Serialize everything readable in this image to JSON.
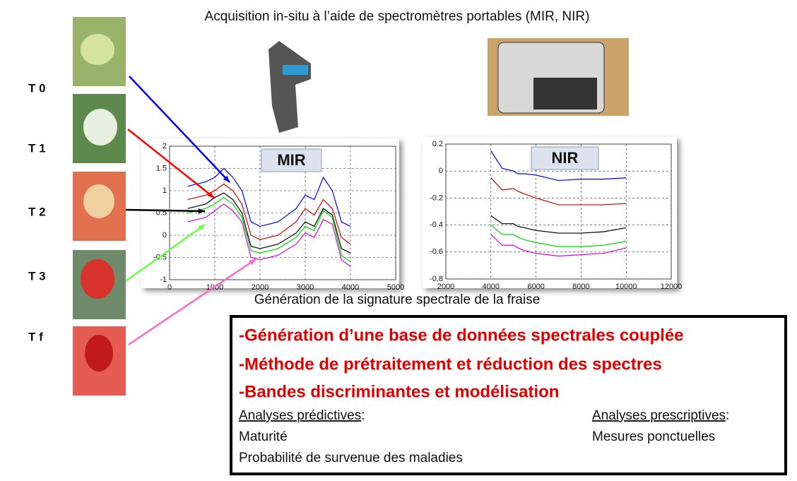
{
  "title": "Acquisition in-situ à l’aide de spectromètres portables (MIR, NIR)",
  "stages": [
    "T 0",
    "T 1",
    "T 2",
    "T 3",
    "T f"
  ],
  "caption": "Génération de la signature spectrale de la fraise",
  "box": {
    "lines": [
      "-Génération d’une base de données spectrales couplée",
      "-Méthode de prétraitement et réduction des spectres",
      "-Bandes discriminantes et modélisation"
    ],
    "left": {
      "heading": "Analyses prédictives",
      "colon": ":",
      "items": [
        "Maturité",
        "Probabilité de survenue des maladies"
      ]
    },
    "right": {
      "heading": "Analyses prescriptives",
      "colon": ":",
      "items": [
        "Mesures ponctuelles"
      ]
    }
  },
  "chart_data": [
    {
      "type": "line",
      "title": "MIR",
      "x": [
        400,
        600,
        800,
        1000,
        1200,
        1400,
        1600,
        1800,
        2000,
        2400,
        2800,
        3000,
        3200,
        3400,
        3600,
        3800,
        4000
      ],
      "series": [
        {
          "color": "#0000ff",
          "values": [
            1.1,
            1.15,
            1.2,
            1.3,
            1.5,
            1.3,
            1.0,
            0.3,
            0.2,
            0.3,
            0.6,
            0.9,
            0.8,
            1.3,
            1.0,
            0.3,
            0.2
          ]
        },
        {
          "color": "#cc0000",
          "values": [
            0.8,
            0.85,
            0.9,
            1.0,
            1.15,
            1.0,
            0.7,
            0.0,
            -0.1,
            0.0,
            0.3,
            0.6,
            0.45,
            0.8,
            0.6,
            -0.05,
            -0.2
          ]
        },
        {
          "color": "#000000",
          "values": [
            0.6,
            0.65,
            0.7,
            0.85,
            0.95,
            0.8,
            0.5,
            -0.25,
            -0.3,
            -0.2,
            0.05,
            0.3,
            0.2,
            0.6,
            0.45,
            -0.3,
            -0.4
          ]
        },
        {
          "color": "#00dd00",
          "values": [
            0.5,
            0.55,
            0.6,
            0.7,
            0.85,
            0.7,
            0.4,
            -0.35,
            -0.4,
            -0.3,
            -0.05,
            0.2,
            0.1,
            0.55,
            0.4,
            -0.45,
            -0.6
          ]
        },
        {
          "color": "#dd00dd",
          "values": [
            0.3,
            0.35,
            0.4,
            0.55,
            0.7,
            0.55,
            0.3,
            -0.5,
            -0.55,
            -0.45,
            -0.2,
            0.05,
            -0.05,
            0.35,
            0.25,
            -0.55,
            -0.7
          ]
        }
      ],
      "xlim": [
        0,
        5000
      ],
      "xticks": [
        0,
        1000,
        2000,
        3000,
        4000,
        5000
      ],
      "ylim": [
        -1,
        2
      ],
      "yticks": [
        -1,
        -0.5,
        0,
        0.5,
        1,
        1.5,
        2
      ],
      "grid": true
    },
    {
      "type": "line",
      "title": "NIR",
      "x": [
        4000,
        4500,
        5000,
        5200,
        5500,
        6000,
        7000,
        8000,
        9000,
        10000
      ],
      "series": [
        {
          "color": "#0000ff",
          "values": [
            0.15,
            0.02,
            0.0,
            -0.02,
            -0.02,
            -0.03,
            -0.07,
            -0.06,
            -0.06,
            -0.05
          ]
        },
        {
          "color": "#cc0000",
          "values": [
            -0.05,
            -0.14,
            -0.13,
            -0.15,
            -0.17,
            -0.2,
            -0.25,
            -0.25,
            -0.25,
            -0.24
          ]
        },
        {
          "color": "#000000",
          "values": [
            -0.33,
            -0.39,
            -0.39,
            -0.41,
            -0.42,
            -0.44,
            -0.46,
            -0.46,
            -0.45,
            -0.42
          ]
        },
        {
          "color": "#00dd00",
          "values": [
            -0.4,
            -0.47,
            -0.47,
            -0.49,
            -0.51,
            -0.53,
            -0.56,
            -0.56,
            -0.55,
            -0.52
          ]
        },
        {
          "color": "#dd00dd",
          "values": [
            -0.47,
            -0.55,
            -0.55,
            -0.57,
            -0.59,
            -0.61,
            -0.63,
            -0.62,
            -0.61,
            -0.57
          ]
        }
      ],
      "xlim": [
        2000,
        12000
      ],
      "xticks": [
        2000,
        4000,
        6000,
        8000,
        10000,
        12000
      ],
      "ylim": [
        -0.8,
        0.2
      ],
      "yticks": [
        -0.8,
        -0.6,
        -0.4,
        -0.2,
        0,
        0.2
      ],
      "grid": true
    }
  ]
}
